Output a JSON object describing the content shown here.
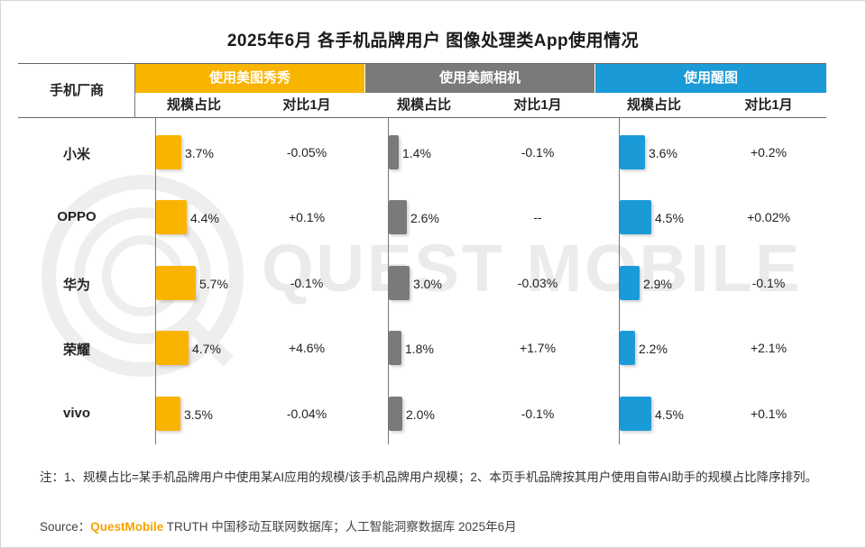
{
  "title": "2025年6月 各手机品牌用户 图像处理类App使用情况",
  "watermark": "QUEST MOBILE",
  "table": {
    "corner_label": "手机厂商",
    "sub_headers": [
      "规模占比",
      "对比1月"
    ]
  },
  "chart_data": {
    "type": "bar",
    "categories": [
      "小米",
      "OPPO",
      "华为",
      "荣耀",
      "vivo"
    ],
    "series": [
      {
        "name": "使用美图秀秀",
        "color": "#f9b400",
        "share_labels": [
          "3.7%",
          "4.4%",
          "5.7%",
          "4.7%",
          "3.5%"
        ],
        "share_values": [
          3.7,
          4.4,
          5.7,
          4.7,
          3.5
        ],
        "change_labels": [
          "-0.05%",
          "+0.1%",
          "-0.1%",
          "+4.6%",
          "-0.04%"
        ]
      },
      {
        "name": "使用美颜相机",
        "color": "#7a7a7a",
        "share_labels": [
          "1.4%",
          "2.6%",
          "3.0%",
          "1.8%",
          "2.0%"
        ],
        "share_values": [
          1.4,
          2.6,
          3.0,
          1.8,
          2.0
        ],
        "change_labels": [
          "-0.1%",
          "--",
          "-0.03%",
          "+1.7%",
          "-0.1%"
        ]
      },
      {
        "name": "使用醒图",
        "color": "#1a9bd7",
        "share_labels": [
          "3.6%",
          "4.5%",
          "2.9%",
          "2.2%",
          "4.5%"
        ],
        "share_values": [
          3.6,
          4.5,
          2.9,
          2.2,
          4.5
        ],
        "change_labels": [
          "+0.2%",
          "+0.02%",
          "-0.1%",
          "+2.1%",
          "+0.1%"
        ]
      }
    ]
  },
  "note": "注：1、规模占比=某手机品牌用户中使用某AI应用的规模/该手机品牌用户规模；2、本页手机品牌按其用户使用自带AI助手的规模占比降序排列。",
  "source": {
    "prefix": "Source：",
    "brand": "QuestMobile",
    "rest": " TRUTH 中国移动互联网数据库；人工智能洞察数据库 2025年6月"
  }
}
